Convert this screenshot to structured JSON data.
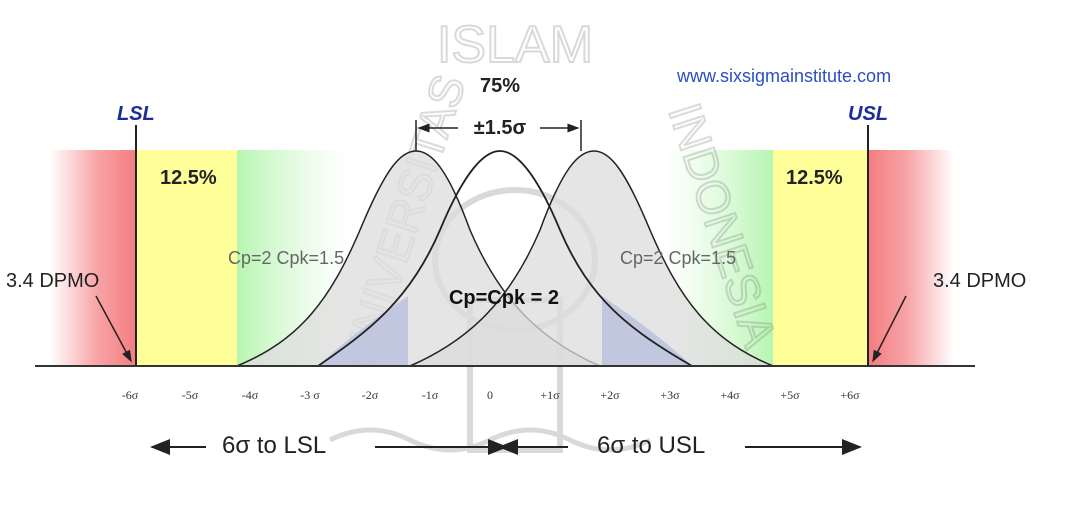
{
  "header": {
    "website": "www.sixsigmainstitute.com",
    "lsl": "LSL",
    "usl": "USL",
    "center_pct": "75%",
    "shift": "±1.5σ"
  },
  "regions": {
    "left_pct": "12.5%",
    "right_pct": "12.5%",
    "left_dpmo": "3.4 DPMO",
    "right_dpmo": "3.4 DPMO"
  },
  "curves": {
    "left_label": "Cp=2 Cpk=1.5",
    "right_label": "Cp=2 Cpk=1.5",
    "center_label": "Cp=Cpk = 2"
  },
  "axis_ticks": [
    "-6σ",
    "-5σ",
    "-4σ",
    "-3 σ",
    "-2σ",
    "-1σ",
    "0",
    "+1σ",
    "+2σ",
    "+3σ",
    "+4σ",
    "+5σ",
    "+6σ"
  ],
  "bottom": {
    "to_lsl": "6σ to LSL",
    "to_usl": "6σ to USL"
  },
  "watermark": {
    "top_text": "ISLAM",
    "left_text": "UNIVERSITAS",
    "right_text": "INDONESIA"
  },
  "colors": {
    "red": "#f47c80",
    "yellow": "#ffff9a",
    "green": "#b7f5b1",
    "curve_fill": "#dcdcdc",
    "blue_tail": "#5a78e0",
    "limit_label": "#1c2c9c",
    "website": "#2a4ec4"
  }
}
